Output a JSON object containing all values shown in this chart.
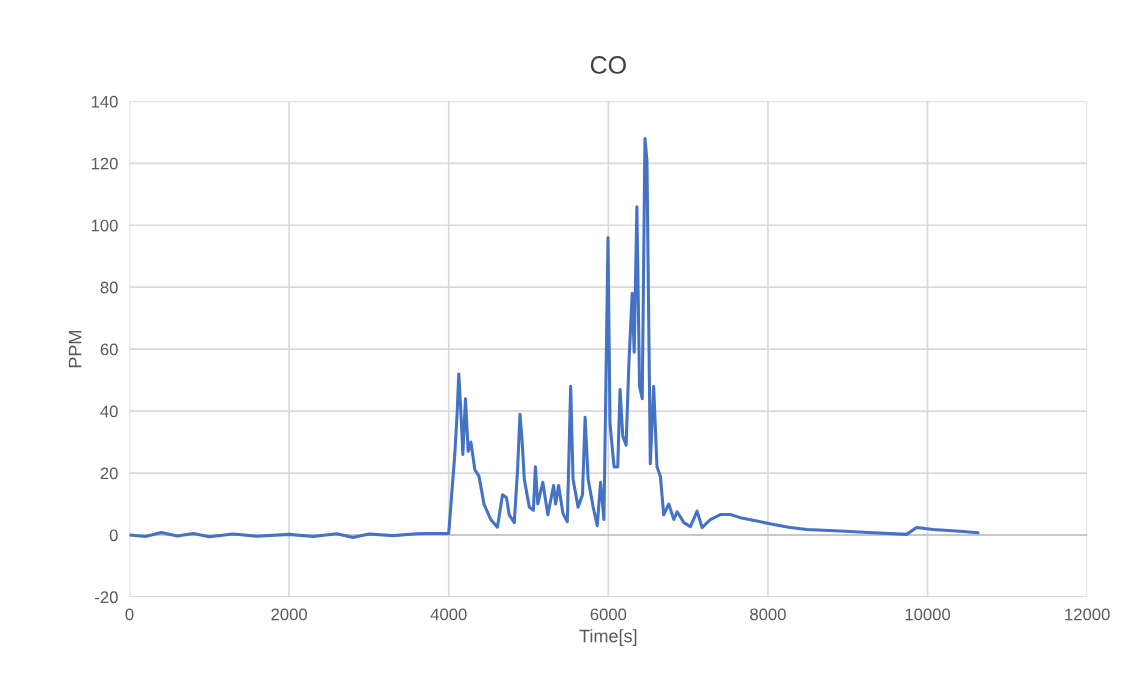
{
  "chart_data": {
    "type": "line",
    "title": "CO",
    "xlabel": "Time[s]",
    "ylabel": "PPM",
    "xlim": [
      0,
      12000
    ],
    "xticks": [
      0,
      2000,
      4000,
      6000,
      8000,
      10000,
      12000
    ],
    "ylim": [
      -20,
      140
    ],
    "yticks": [
      -20,
      0,
      20,
      40,
      60,
      80,
      100,
      120,
      140
    ],
    "grid": true,
    "series": [
      {
        "color": "#4472c4",
        "x": [
          0,
          200,
          400,
          600,
          800,
          1000,
          1300,
          1600,
          2000,
          2300,
          2600,
          2800,
          3000,
          3300,
          3600,
          3747,
          4000,
          4034,
          4076,
          4105,
          4126,
          4152,
          4177,
          4210,
          4244,
          4278,
          4328,
          4379,
          4442,
          4526,
          4610,
          4674,
          4724,
          4758,
          4821,
          4863,
          4893,
          4918,
          4947,
          5010,
          5061,
          5086,
          5116,
          5179,
          5242,
          5314,
          5339,
          5377,
          5431,
          5486,
          5528,
          5558,
          5621,
          5676,
          5709,
          5747,
          5810,
          5861,
          5903,
          5945,
          5996,
          6021,
          6072,
          6118,
          6147,
          6181,
          6223,
          6257,
          6299,
          6324,
          6358,
          6391,
          6425,
          6459,
          6484,
          6526,
          6568,
          6610,
          6652,
          6694,
          6757,
          6821,
          6862,
          6947,
          7029,
          7112,
          7175,
          7279,
          7404,
          7529,
          7654,
          7862,
          8071,
          8279,
          8488,
          8904,
          9321,
          9738,
          9863,
          10071,
          10363,
          10633
        ],
        "values": [
          0,
          -0.5,
          0.8,
          -0.3,
          0.5,
          -0.6,
          0.3,
          -0.4,
          0.2,
          -0.5,
          0.4,
          -0.8,
          0.3,
          -0.2,
          0.4,
          0.5,
          0.5,
          12,
          26,
          39,
          52,
          40,
          26,
          44,
          27,
          30,
          21,
          19,
          10,
          5,
          2.5,
          13,
          12,
          6.5,
          4,
          21,
          39,
          31,
          18,
          9,
          8,
          22,
          10,
          17,
          6.5,
          16,
          10,
          16,
          7,
          4.3,
          48,
          18,
          9,
          13,
          38,
          18,
          9,
          3,
          17,
          5,
          96,
          36,
          22,
          22,
          47,
          32,
          29,
          55,
          78,
          59,
          106,
          48,
          44,
          128,
          121,
          23,
          48,
          22,
          19,
          6.5,
          10,
          5,
          7.5,
          4,
          2.7,
          7.7,
          2.4,
          5,
          6.6,
          6.6,
          5.6,
          4.5,
          3.4,
          2.4,
          1.8,
          1.3,
          0.7,
          0.2,
          2.4,
          1.8,
          1.3,
          0.7
        ]
      }
    ]
  }
}
